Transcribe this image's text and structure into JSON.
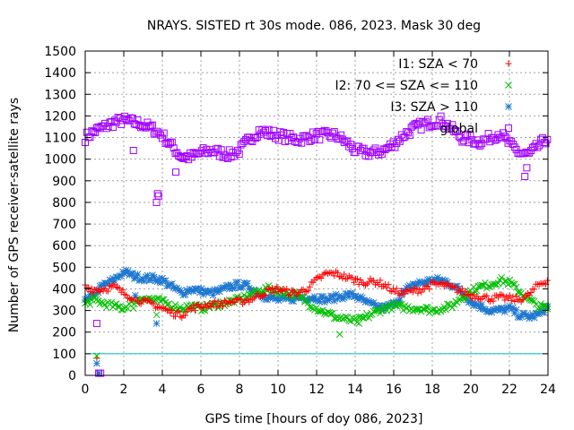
{
  "chart_data": {
    "type": "scatter",
    "title": "NRAYS. SISTED rt 30s mode. 086, 2023. Mask 30 deg",
    "xlabel": "GPS time [hours of doy 086, 2023]",
    "ylabel": "Number of GPS receiver-satellite rays",
    "xlim": [
      0,
      24
    ],
    "ylim": [
      0,
      1500
    ],
    "xticks": [
      0,
      2,
      4,
      6,
      8,
      10,
      12,
      14,
      16,
      18,
      20,
      22,
      24
    ],
    "yticks": [
      0,
      100,
      200,
      300,
      400,
      500,
      600,
      700,
      800,
      900,
      1000,
      1100,
      1200,
      1300,
      1400,
      1500
    ],
    "grid": true,
    "legend_position": "top-right",
    "reference_line": {
      "y": 100,
      "color": "#00c0c0"
    },
    "series": [
      {
        "name": "I1: SZA < 70",
        "marker": "plus",
        "color": "#ff0000",
        "x": [
          0,
          0.5,
          1,
          1.5,
          2,
          2.5,
          3,
          3.5,
          4,
          4.5,
          5,
          5.5,
          6,
          6.5,
          7,
          7.5,
          8,
          8.5,
          9,
          9.5,
          10,
          10.5,
          11,
          11.5,
          12,
          12.5,
          13,
          13.5,
          14,
          14.5,
          15,
          15.5,
          16,
          16.5,
          17,
          17.5,
          18,
          18.5,
          19,
          19.5,
          20,
          20.5,
          21,
          21.5,
          22,
          22.5,
          23,
          23.5,
          24
        ],
        "y": [
          410,
          395,
          400,
          410,
          380,
          360,
          340,
          330,
          310,
          290,
          280,
          310,
          320,
          330,
          330,
          340,
          340,
          350,
          370,
          390,
          400,
          385,
          380,
          400,
          440,
          470,
          470,
          455,
          440,
          430,
          435,
          420,
          390,
          380,
          390,
          400,
          420,
          420,
          405,
          390,
          370,
          365,
          355,
          360,
          355,
          350,
          370,
          420,
          440
        ]
      },
      {
        "name": "I2: 70 <= SZA <= 110",
        "marker": "cross",
        "color": "#00c000",
        "x": [
          0,
          0.5,
          1,
          1.5,
          2,
          2.5,
          3,
          3.5,
          4,
          4.5,
          5,
          5.5,
          6,
          6.5,
          7,
          7.5,
          8,
          8.5,
          9,
          9.5,
          10,
          10.5,
          11,
          11.5,
          12,
          12.5,
          13,
          13.5,
          14,
          14.5,
          15,
          15.5,
          16,
          16.5,
          17,
          17.5,
          18,
          18.5,
          19,
          19.5,
          20,
          20.5,
          21,
          21.5,
          22,
          22.5,
          23,
          23.5,
          24
        ],
        "y": [
          330,
          350,
          330,
          320,
          310,
          340,
          360,
          350,
          340,
          320,
          310,
          320,
          310,
          320,
          330,
          340,
          350,
          370,
          390,
          400,
          390,
          380,
          370,
          340,
          310,
          290,
          270,
          260,
          250,
          265,
          290,
          310,
          320,
          315,
          310,
          310,
          300,
          310,
          320,
          360,
          390,
          410,
          420,
          440,
          430,
          390,
          350,
          320,
          310
        ]
      },
      {
        "name": "I3: SZA > 110",
        "marker": "star",
        "color": "#1f78d0",
        "x": [
          0,
          0.5,
          1,
          1.5,
          2,
          2.5,
          3,
          3.5,
          4,
          4.5,
          5,
          5.5,
          6,
          6.5,
          7,
          7.5,
          8,
          8.5,
          9,
          9.5,
          10,
          10.5,
          11,
          11.5,
          12,
          12.5,
          13,
          13.5,
          14,
          14.5,
          15,
          15.5,
          16,
          16.5,
          17,
          17.5,
          18,
          18.5,
          19,
          19.5,
          20,
          20.5,
          21,
          21.5,
          22,
          22.5,
          23,
          23.5,
          24
        ],
        "y": [
          340,
          380,
          420,
          440,
          480,
          460,
          450,
          450,
          440,
          410,
          380,
          400,
          390,
          380,
          390,
          410,
          420,
          410,
          380,
          360,
          350,
          350,
          360,
          360,
          360,
          350,
          360,
          370,
          370,
          340,
          320,
          310,
          330,
          380,
          420,
          430,
          440,
          440,
          420,
          390,
          340,
          320,
          300,
          300,
          310,
          280,
          270,
          280,
          320
        ]
      },
      {
        "name": "global",
        "marker": "square",
        "color": "#a000ff",
        "x": [
          0,
          0.5,
          1,
          1.5,
          2,
          2.5,
          3,
          3.5,
          4,
          4.5,
          5,
          5.5,
          6,
          6.5,
          7,
          7.5,
          8,
          8.5,
          9,
          9.5,
          10,
          10.5,
          11,
          11.5,
          12,
          12.5,
          13,
          13.5,
          14,
          14.5,
          15,
          15.5,
          16,
          16.5,
          17,
          17.5,
          18,
          18.5,
          19,
          19.5,
          20,
          20.5,
          21,
          21.5,
          22,
          22.5,
          23,
          23.5,
          24
        ],
        "y": [
          1100,
          1130,
          1150,
          1170,
          1180,
          1170,
          1160,
          1140,
          1110,
          1060,
          1010,
          1010,
          1030,
          1040,
          1030,
          1020,
          1040,
          1090,
          1130,
          1120,
          1110,
          1100,
          1090,
          1100,
          1110,
          1110,
          1110,
          1080,
          1040,
          1030,
          1030,
          1040,
          1070,
          1110,
          1140,
          1160,
          1170,
          1180,
          1140,
          1100,
          1090,
          1080,
          1100,
          1120,
          1070,
          1030,
          1020,
          1060,
          1100
        ]
      }
    ],
    "outliers": [
      {
        "series": "I1: SZA < 70",
        "x": [
          0.6,
          0.7
        ],
        "y": [
          80,
          10
        ]
      },
      {
        "series": "I2: 70 <= SZA <= 110",
        "x": [
          0.6,
          0.7,
          2.5,
          3.7,
          13.2,
          14.2
        ],
        "y": [
          90,
          10,
          310,
          280,
          190,
          240
        ]
      },
      {
        "series": "I3: SZA > 110",
        "x": [
          0.6,
          0.7,
          2.6,
          3.7
        ],
        "y": [
          55,
          10,
          370,
          240
        ]
      },
      {
        "series": "global",
        "x": [
          0.6,
          0.7,
          0.8,
          2.5,
          3.7,
          3.75,
          3.8,
          4.7,
          22.8,
          22.9
        ],
        "y": [
          240,
          10,
          10,
          1040,
          800,
          840,
          830,
          940,
          920,
          960
        ]
      }
    ]
  }
}
